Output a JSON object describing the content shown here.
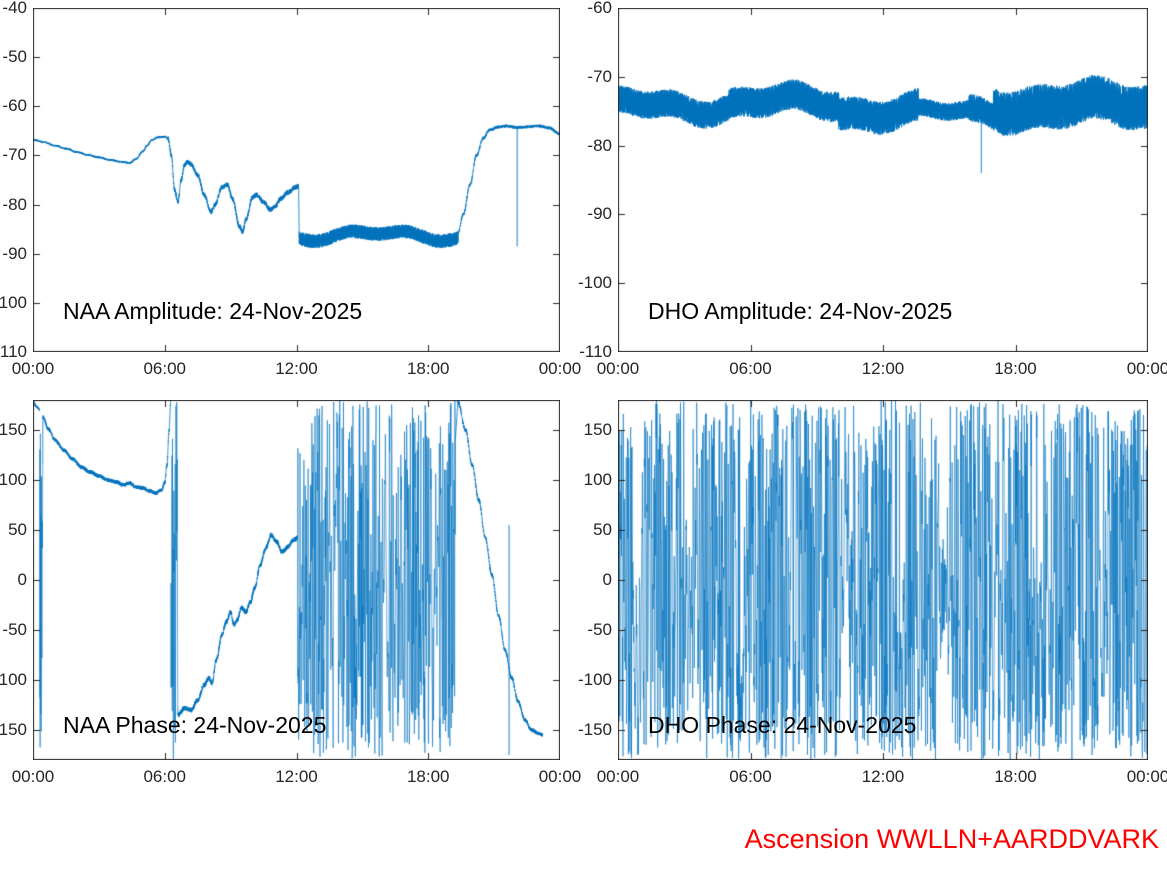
{
  "figure": {
    "background": "#ffffff",
    "line_color": "#0072BD",
    "axis_color": "#262626",
    "tick_label_color": "#262626",
    "caption": {
      "text": "Ascension WWLLN+AARDDVARK",
      "color": "#ff0000"
    }
  },
  "chart_data": [
    {
      "id": "naa-amplitude",
      "type": "line",
      "title": "NAA Amplitude: 24-Nov-2025",
      "xlim": [
        0,
        24
      ],
      "x_tick_hours": [
        0,
        6,
        12,
        18,
        24
      ],
      "x_tick_labels": [
        "00:00",
        "06:00",
        "12:00",
        "18:00",
        "00:00"
      ],
      "ylim": [
        -110,
        -40
      ],
      "y_tick_values": [
        -40,
        -50,
        -60,
        -70,
        -80,
        -90,
        -100,
        -110
      ],
      "y_tick_labels": [
        "-40",
        "-50",
        "-60",
        "-70",
        "-80",
        "-90",
        "-100",
        "-110"
      ],
      "y_labels_clipped": true,
      "series": {
        "segments": [
          {
            "mode": "smooth",
            "noise": 0.2,
            "keypoints": [
              [
                0,
                -66.8
              ],
              [
                0.5,
                -67.3
              ],
              [
                1,
                -68
              ],
              [
                1.5,
                -68.6
              ],
              [
                2,
                -69.3
              ],
              [
                2.5,
                -69.9
              ],
              [
                3,
                -70.4
              ],
              [
                3.5,
                -70.9
              ],
              [
                4,
                -71.3
              ],
              [
                4.4,
                -71.5
              ],
              [
                4.7,
                -70.7
              ],
              [
                5,
                -69.2
              ],
              [
                5.2,
                -68
              ],
              [
                5.4,
                -66.9
              ],
              [
                5.7,
                -66.3
              ],
              [
                6,
                -66.2
              ],
              [
                6.15,
                -66.6
              ]
            ]
          },
          {
            "mode": "smooth",
            "noise": 0.5,
            "keypoints": [
              [
                6.15,
                -66.6
              ],
              [
                6.3,
                -70
              ],
              [
                6.45,
                -77
              ],
              [
                6.6,
                -79.5
              ],
              [
                6.75,
                -75
              ],
              [
                6.9,
                -72
              ],
              [
                7.05,
                -71.3
              ],
              [
                7.2,
                -71.8
              ],
              [
                7.5,
                -74
              ],
              [
                7.8,
                -78
              ],
              [
                8.1,
                -81.5
              ],
              [
                8.3,
                -80
              ],
              [
                8.6,
                -76.5
              ],
              [
                8.85,
                -76
              ],
              [
                9.1,
                -79
              ],
              [
                9.4,
                -84.5
              ],
              [
                9.55,
                -85.5
              ],
              [
                9.7,
                -83
              ],
              [
                10,
                -78.5
              ],
              [
                10.2,
                -78
              ],
              [
                10.5,
                -79.5
              ],
              [
                10.8,
                -81
              ],
              [
                11,
                -80.5
              ],
              [
                11.3,
                -78.8
              ],
              [
                11.6,
                -77.5
              ],
              [
                12,
                -76.4
              ],
              [
                12.1,
                -76.2
              ]
            ]
          },
          {
            "mode": "band",
            "from": 12.12,
            "to": 19.35,
            "center": -86.3,
            "noise": 1.4
          },
          {
            "mode": "smooth",
            "noise": 0.3,
            "keypoints": [
              [
                19.35,
                -85.8
              ],
              [
                19.6,
                -82
              ],
              [
                19.9,
                -76
              ],
              [
                20.2,
                -70
              ],
              [
                20.5,
                -66.5
              ],
              [
                20.8,
                -64.8
              ],
              [
                21.2,
                -64.2
              ],
              [
                21.6,
                -64
              ],
              [
                22,
                -64.3
              ],
              [
                22.5,
                -64.2
              ],
              [
                23,
                -64
              ],
              [
                23.5,
                -64.4
              ],
              [
                24,
                -65.6
              ]
            ]
          }
        ],
        "spikes": [
          {
            "t": 22.05,
            "v1": -64.3,
            "v2": -88.5
          }
        ]
      }
    },
    {
      "id": "dho-amplitude",
      "type": "line",
      "title": "DHO Amplitude: 24-Nov-2025",
      "xlim": [
        0,
        24
      ],
      "x_tick_hours": [
        0,
        6,
        12,
        18,
        24
      ],
      "x_tick_labels": [
        "00:00",
        "06:00",
        "12:00",
        "18:00",
        "00:00"
      ],
      "ylim": [
        -110,
        -60
      ],
      "y_tick_values": [
        -60,
        -70,
        -80,
        -90,
        -100,
        -110
      ],
      "y_tick_labels": [
        "-60",
        "-70",
        "-80",
        "-90",
        "-100",
        "-110"
      ],
      "y_labels_clipped": false,
      "series": {
        "segments": [
          {
            "mode": "band",
            "from": 0,
            "to": 5,
            "center": -74.3,
            "noise": 2.0
          },
          {
            "mode": "band",
            "from": 5,
            "to": 10,
            "center": -73.8,
            "noise": 2.2
          },
          {
            "mode": "band",
            "from": 10,
            "to": 13.6,
            "center": -75.0,
            "noise": 2.4
          },
          {
            "mode": "band",
            "from": 13.6,
            "to": 15.9,
            "center": -75.4,
            "noise": 1.3
          },
          {
            "mode": "band",
            "from": 15.9,
            "to": 17,
            "center": -75.2,
            "noise": 2.0
          },
          {
            "mode": "band",
            "from": 17,
            "to": 24,
            "center": -74.2,
            "noise": 3.2
          }
        ],
        "spikes": [
          {
            "t": 16.45,
            "v1": -73.5,
            "v2": -84
          }
        ]
      }
    },
    {
      "id": "naa-phase",
      "type": "line",
      "title": "NAA Phase: 24-Nov-2025",
      "xlim": [
        0,
        24
      ],
      "x_tick_hours": [
        0,
        6,
        12,
        18,
        24
      ],
      "x_tick_labels": [
        "00:00",
        "06:00",
        "12:00",
        "18:00",
        "00:00"
      ],
      "ylim": [
        -180,
        180
      ],
      "y_tick_values": [
        150,
        100,
        50,
        0,
        -50,
        -100,
        -150
      ],
      "y_tick_labels": [
        "150",
        "100",
        "50",
        "0",
        "-50",
        "-100",
        "-150"
      ],
      "y_labels_clipped": true,
      "series": {
        "segments": [
          {
            "mode": "smooth",
            "noise": 1.5,
            "keypoints": [
              [
                0,
                178
              ],
              [
                0.15,
                174
              ],
              [
                0.3,
                170
              ]
            ]
          },
          {
            "mode": "chaotic",
            "from": 0.3,
            "to": 0.45,
            "step": 330
          },
          {
            "mode": "smooth",
            "noise": 2,
            "keypoints": [
              [
                0.45,
                163
              ],
              [
                0.7,
                151
              ],
              [
                1,
                140
              ],
              [
                1.4,
                130
              ],
              [
                1.8,
                121
              ],
              [
                2.2,
                113
              ],
              [
                2.6,
                108
              ],
              [
                3,
                104
              ],
              [
                3.4,
                100
              ],
              [
                3.8,
                98
              ],
              [
                4.1,
                95
              ],
              [
                4.4,
                97
              ],
              [
                4.7,
                93
              ],
              [
                5,
                92
              ],
              [
                5.3,
                89
              ],
              [
                5.6,
                87
              ],
              [
                5.85,
                90
              ],
              [
                6,
                97
              ],
              [
                6.1,
                115
              ],
              [
                6.2,
                150
              ],
              [
                6.27,
                178
              ]
            ]
          },
          {
            "mode": "chaotic",
            "from": 6.27,
            "to": 6.6,
            "step": 330
          },
          {
            "mode": "smooth",
            "noise": 2.5,
            "keypoints": [
              [
                6.6,
                -135
              ],
              [
                6.9,
                -128
              ],
              [
                7.2,
                -130
              ],
              [
                7.5,
                -120
              ],
              [
                7.8,
                -105
              ],
              [
                8,
                -98
              ],
              [
                8.15,
                -103
              ],
              [
                8.35,
                -80
              ],
              [
                8.6,
                -55
              ],
              [
                8.8,
                -42
              ],
              [
                9,
                -32
              ],
              [
                9.15,
                -45
              ],
              [
                9.3,
                -40
              ],
              [
                9.5,
                -28
              ],
              [
                9.7,
                -32
              ],
              [
                9.9,
                -22
              ],
              [
                10.1,
                -8
              ],
              [
                10.35,
                15
              ],
              [
                10.6,
                32
              ],
              [
                10.85,
                45
              ],
              [
                11.1,
                38
              ],
              [
                11.35,
                28
              ],
              [
                11.6,
                33
              ],
              [
                11.85,
                40
              ],
              [
                12.05,
                42
              ]
            ]
          },
          {
            "mode": "chaotic",
            "from": 12.05,
            "to": 19.25,
            "step": 160
          },
          {
            "mode": "smooth",
            "noise": 2,
            "keypoints": [
              [
                19.35,
                178
              ],
              [
                19.7,
                150
              ],
              [
                20,
                115
              ],
              [
                20.3,
                80
              ],
              [
                20.6,
                42
              ],
              [
                20.9,
                5
              ],
              [
                21.2,
                -35
              ],
              [
                21.5,
                -70
              ],
              [
                21.8,
                -98
              ],
              [
                22.1,
                -122
              ],
              [
                22.4,
                -140
              ],
              [
                22.7,
                -150
              ],
              [
                23,
                -153
              ],
              [
                23.2,
                -155
              ]
            ]
          }
        ],
        "spikes": [
          {
            "t": 21.68,
            "v1": 55,
            "v2": -175
          }
        ]
      }
    },
    {
      "id": "dho-phase",
      "type": "line",
      "title": "DHO Phase: 24-Nov-2025",
      "xlim": [
        0,
        24
      ],
      "x_tick_hours": [
        0,
        6,
        12,
        18,
        24
      ],
      "x_tick_labels": [
        "00:00",
        "06:00",
        "12:00",
        "18:00",
        "00:00"
      ],
      "ylim": [
        -180,
        180
      ],
      "y_tick_values": [
        150,
        100,
        50,
        0,
        -50,
        -100,
        -150
      ],
      "y_tick_labels": [
        "150",
        "100",
        "50",
        "0",
        "-50",
        "-100",
        "-150"
      ],
      "y_labels_clipped": false,
      "series": {
        "segments": [
          {
            "mode": "chaotic",
            "from": 0,
            "to": 24,
            "step": 150
          }
        ],
        "spikes": []
      }
    }
  ]
}
